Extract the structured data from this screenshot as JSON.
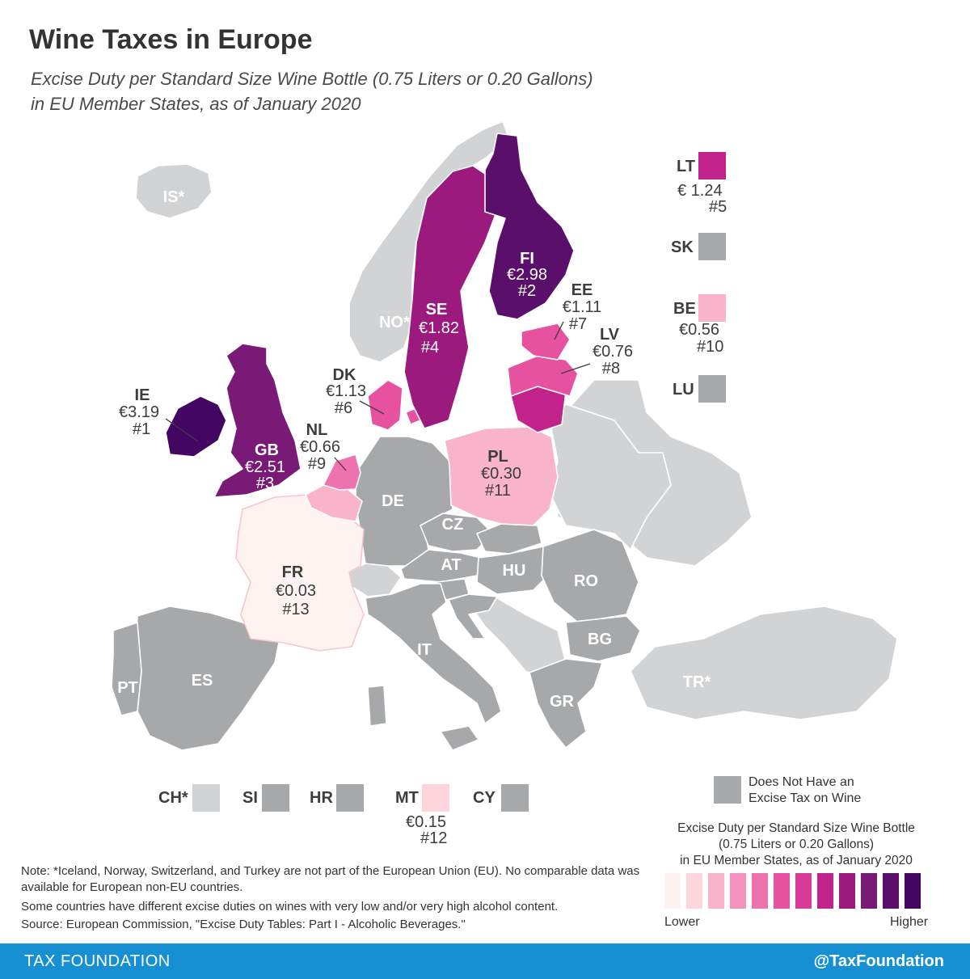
{
  "title": "Wine Taxes in Europe",
  "subtitle_line1": "Excise Duty per Standard Size Wine Bottle (0.75 Liters or 0.20 Gallons)",
  "subtitle_line2": "in EU Member States, as of January 2020",
  "colors": {
    "non_eu": "#d2d3d5",
    "no_tax": "#a7a8aa",
    "ramp": [
      "#fff3f2",
      "#fcd6dc",
      "#f9b3ca",
      "#f491bd",
      "#ee72ae",
      "#e6529f",
      "#d93a95",
      "#c1238b",
      "#9c1a7e",
      "#7a1a77",
      "#5a0f6b",
      "#440663"
    ]
  },
  "countries": [
    {
      "code": "IE",
      "value": "€3.19",
      "rank": "#1"
    },
    {
      "code": "FI",
      "value": "€2.98",
      "rank": "#2"
    },
    {
      "code": "GB",
      "value": "€2.51",
      "rank": "#3"
    },
    {
      "code": "SE",
      "value": "€1.82",
      "rank": "#4"
    },
    {
      "code": "LT",
      "value": "€ 1.24",
      "rank": "#5"
    },
    {
      "code": "DK",
      "value": "€1.13",
      "rank": "#6"
    },
    {
      "code": "EE",
      "value": "€1.11",
      "rank": "#7"
    },
    {
      "code": "LV",
      "value": "€0.76",
      "rank": "#8"
    },
    {
      "code": "NL",
      "value": "€0.66",
      "rank": "#9"
    },
    {
      "code": "BE",
      "value": "€0.56",
      "rank": "#10"
    },
    {
      "code": "PL",
      "value": "€0.30",
      "rank": "#11"
    },
    {
      "code": "MT",
      "value": "€0.15",
      "rank": "#12"
    },
    {
      "code": "FR",
      "value": "€0.03",
      "rank": "#13"
    }
  ],
  "no_tax_labels": [
    "DE",
    "CZ",
    "AT",
    "HU",
    "RO",
    "BG",
    "IT",
    "GR",
    "ES",
    "PT",
    "SK",
    "LU",
    "SI",
    "HR",
    "CY"
  ],
  "non_eu_labels": [
    "IS*",
    "NO*",
    "TR*",
    "CH*"
  ],
  "legend": {
    "no_tax_line1": "Does Not Have an",
    "no_tax_line2": "Excise Tax on Wine",
    "title_line1": "Excise Duty per Standard Size Wine Bottle",
    "title_line2": "(0.75 Liters or 0.20 Gallons)",
    "title_line3": "in EU Member States, as of January 2020",
    "lower": "Lower",
    "higher": "Higher"
  },
  "notes": {
    "line1": "Note: *Iceland, Norway, Switzerland, and Turkey are not part of the European Union (EU). No comparable data was available for European non-EU countries.",
    "line2": "Some countries have different excise duties on wines with very low and/or very high alcohol content.",
    "line3": "Source: European Commission, \"Excise Duty Tables: Part I - Alcoholic Beverages.\""
  },
  "footer": {
    "left": "TAX FOUNDATION",
    "right": "@TaxFoundation"
  }
}
